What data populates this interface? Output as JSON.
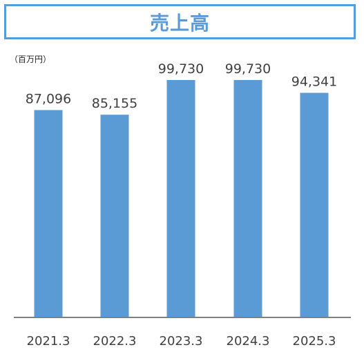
{
  "title": "売上高",
  "unit": "（百万円）",
  "colors": {
    "accent": "#5B9BD5",
    "bar": "#5B9BD5",
    "axis": "#7F7F7F",
    "text": "#404040"
  },
  "chart_data": {
    "type": "bar",
    "title": "売上高",
    "ylabel": "（百万円）",
    "xlabel": "",
    "categories": [
      "2021.3",
      "2022.3",
      "2023.3",
      "2024.3",
      "2025.3"
    ],
    "values": [
      87096,
      85155,
      99730,
      99730,
      94341
    ],
    "value_labels": [
      "87,096",
      "85,155",
      "99,730",
      "99,730",
      "94,341"
    ],
    "ylim": [
      0,
      100000
    ],
    "grid": false,
    "legend": "none"
  }
}
